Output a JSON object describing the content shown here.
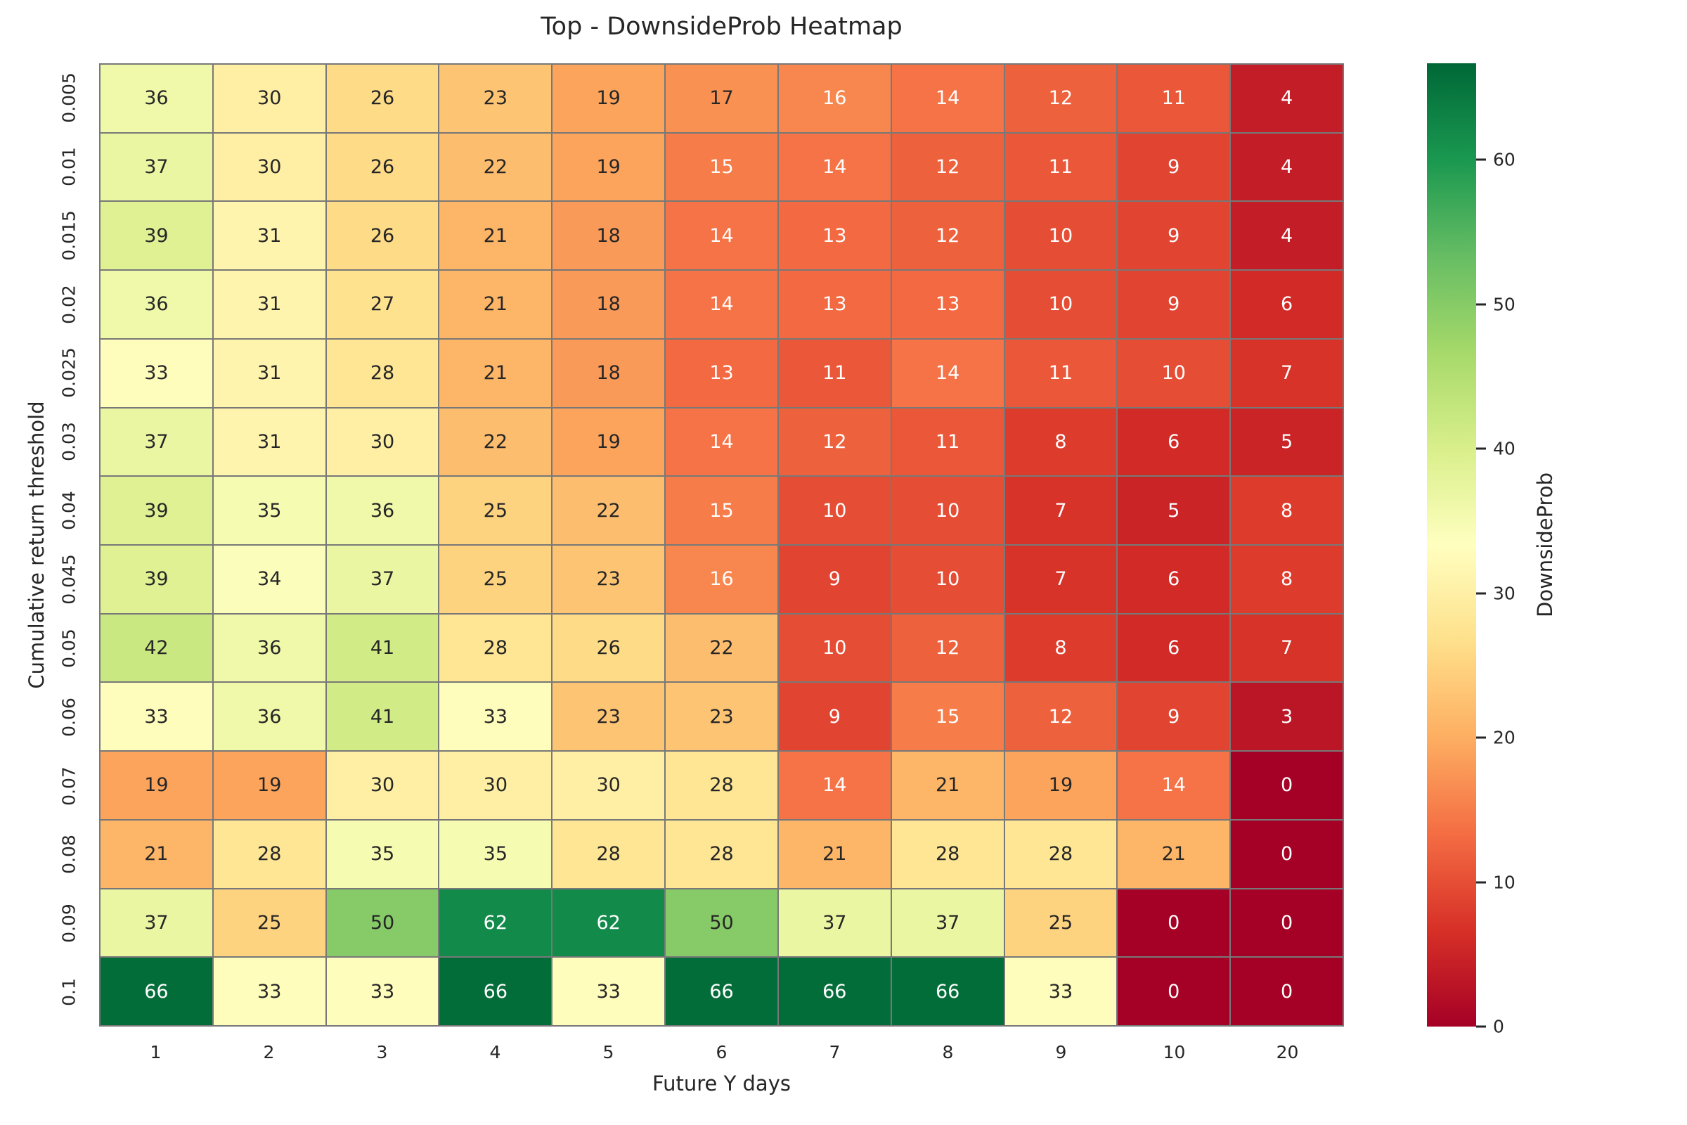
{
  "chart_data": {
    "type": "heatmap",
    "title": "Top - DownsideProb Heatmap",
    "xlabel": "Future Y days",
    "ylabel": "Cumulative return threshold",
    "x_categories": [
      "1",
      "2",
      "3",
      "4",
      "5",
      "6",
      "7",
      "8",
      "9",
      "10",
      "20"
    ],
    "y_categories": [
      "0.005",
      "0.01",
      "0.015",
      "0.02",
      "0.025",
      "0.03",
      "0.04",
      "0.045",
      "0.05",
      "0.06",
      "0.07",
      "0.08",
      "0.09",
      "0.1"
    ],
    "values": [
      [
        36,
        30,
        26,
        23,
        19,
        17,
        16,
        14,
        12,
        11,
        4
      ],
      [
        37,
        30,
        26,
        22,
        19,
        15,
        14,
        12,
        11,
        9,
        4
      ],
      [
        39,
        31,
        26,
        21,
        18,
        14,
        13,
        12,
        10,
        9,
        4
      ],
      [
        36,
        31,
        27,
        21,
        18,
        14,
        13,
        13,
        10,
        9,
        6
      ],
      [
        33,
        31,
        28,
        21,
        18,
        13,
        11,
        14,
        11,
        10,
        7
      ],
      [
        37,
        31,
        30,
        22,
        19,
        14,
        12,
        11,
        8,
        6,
        5
      ],
      [
        39,
        35,
        36,
        25,
        22,
        15,
        10,
        10,
        7,
        5,
        8
      ],
      [
        39,
        34,
        37,
        25,
        23,
        16,
        9,
        10,
        7,
        6,
        8
      ],
      [
        42,
        36,
        41,
        28,
        26,
        22,
        10,
        12,
        8,
        6,
        7
      ],
      [
        33,
        36,
        41,
        33,
        23,
        23,
        9,
        15,
        12,
        9,
        3
      ],
      [
        19,
        19,
        30,
        30,
        30,
        28,
        14,
        21,
        19,
        14,
        0
      ],
      [
        21,
        28,
        35,
        35,
        28,
        28,
        21,
        28,
        28,
        21,
        0
      ],
      [
        37,
        25,
        50,
        62,
        62,
        50,
        37,
        37,
        25,
        0,
        0
      ],
      [
        66,
        33,
        33,
        66,
        33,
        66,
        66,
        66,
        33,
        0,
        0
      ]
    ],
    "colorbar": {
      "label": "DownsideProb",
      "ticks": [
        0,
        10,
        20,
        30,
        40,
        50,
        60
      ],
      "vmin": 0,
      "vmax": 66.67
    },
    "colormap": {
      "name": "RdYlGn",
      "anchors": [
        "#a50026",
        "#d73027",
        "#f46d43",
        "#fdae61",
        "#fee08b",
        "#ffffbf",
        "#d9ef8b",
        "#a6d96a",
        "#66bd63",
        "#1a9850",
        "#006837"
      ]
    },
    "annotation_colors": {
      "dark_text": "#262626",
      "light_text": "#ffffff"
    },
    "grid_line_color": "#787878",
    "legend_position": "right",
    "grid": "cell-borders-on"
  }
}
